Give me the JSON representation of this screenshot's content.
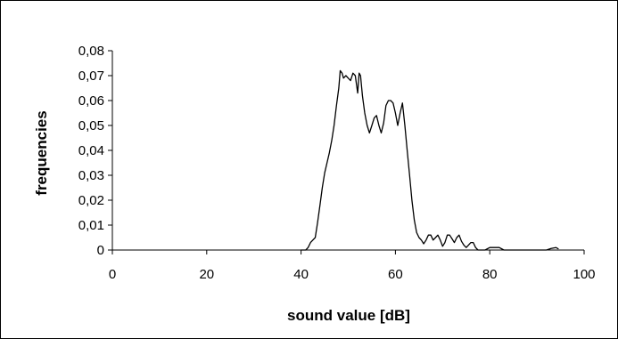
{
  "chart_data": {
    "type": "line",
    "title": "",
    "xlabel": "sound value [dB]",
    "ylabel": "frequencies",
    "xlim": [
      0,
      100
    ],
    "ylim": [
      0,
      0.08
    ],
    "x_ticks": [
      0,
      20,
      40,
      60,
      80,
      100
    ],
    "y_ticks": [
      0,
      0.01,
      0.02,
      0.03,
      0.04,
      0.05,
      0.06,
      0.07,
      0.08
    ],
    "x_tick_labels": [
      "0",
      "20",
      "40",
      "60",
      "80",
      "100"
    ],
    "y_tick_labels": [
      "0",
      "0,01",
      "0,02",
      "0,03",
      "0,04",
      "0,05",
      "0,06",
      "0,07",
      "0,08"
    ],
    "grid": false,
    "legend": "none",
    "line_color": "#000000",
    "series": [
      {
        "x": [
          40,
          41,
          41.5,
          42,
          42.5,
          43,
          43.5,
          44,
          44.5,
          45,
          45.5,
          46,
          46.5,
          47,
          47.5,
          48,
          48.3,
          48.7,
          49,
          49.5,
          50,
          50.5,
          51,
          51.5,
          52,
          52.3,
          52.6,
          53,
          53.5,
          54,
          54.5,
          55,
          55.5,
          56,
          56.5,
          57,
          57.5,
          58,
          58.5,
          59,
          59.5,
          60,
          60.5,
          61,
          61.5,
          62,
          62.5,
          63,
          63.5,
          64,
          64.5,
          65,
          65.5,
          66,
          66.5,
          67,
          67.5,
          68,
          68.5,
          69,
          69.5,
          70,
          70.5,
          71,
          71.5,
          72,
          72.5,
          73,
          73.5,
          74,
          74.5,
          75,
          75.5,
          76,
          76.5,
          77,
          77.5,
          78,
          78.5,
          79,
          80,
          82,
          83,
          84,
          84.5,
          85,
          86,
          88,
          90,
          92,
          93,
          94,
          94.5
        ],
        "y": [
          0,
          0,
          0.001,
          0.003,
          0.004,
          0.005,
          0.011,
          0.018,
          0.025,
          0.031,
          0.035,
          0.039,
          0.044,
          0.05,
          0.058,
          0.065,
          0.072,
          0.071,
          0.069,
          0.07,
          0.069,
          0.068,
          0.071,
          0.07,
          0.063,
          0.071,
          0.07,
          0.062,
          0.055,
          0.05,
          0.047,
          0.05,
          0.053,
          0.054,
          0.05,
          0.047,
          0.051,
          0.058,
          0.06,
          0.06,
          0.059,
          0.055,
          0.05,
          0.055,
          0.059,
          0.05,
          0.04,
          0.03,
          0.02,
          0.012,
          0.007,
          0.005,
          0.004,
          0.0025,
          0.004,
          0.006,
          0.006,
          0.004,
          0.005,
          0.006,
          0.004,
          0.0015,
          0.003,
          0.006,
          0.006,
          0.0045,
          0.003,
          0.005,
          0.006,
          0.0035,
          0.002,
          0.001,
          0.002,
          0.003,
          0.003,
          0.001,
          0,
          0,
          0,
          0,
          0.001,
          0.001,
          0,
          0,
          0,
          0,
          0,
          0,
          0,
          0,
          0.0006,
          0.001,
          0.0005
        ]
      }
    ]
  }
}
